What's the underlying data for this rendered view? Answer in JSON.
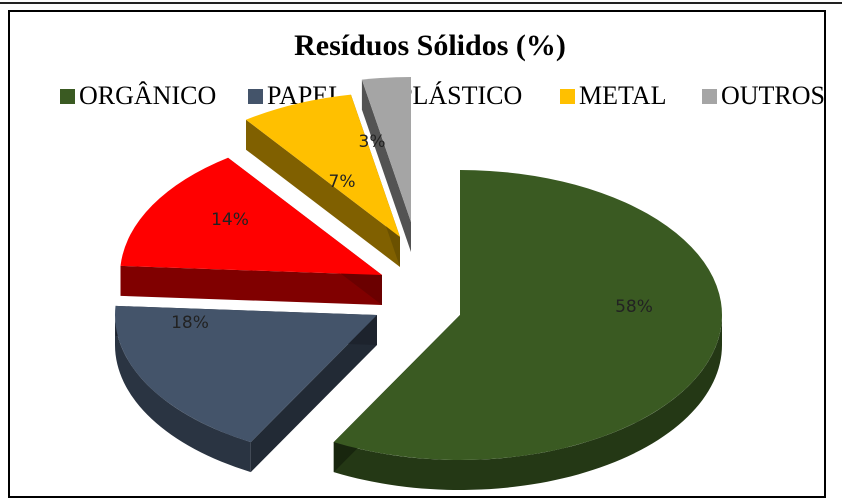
{
  "chart_data": {
    "type": "pie",
    "title": "Resíduos Sólidos (%)",
    "categories": [
      "ORGÂNICO",
      "PAPEL",
      "PLÁSTICO",
      "METAL",
      "OUTROS"
    ],
    "values": [
      58,
      18,
      14,
      7,
      3
    ],
    "data_labels": [
      "58%",
      "18%",
      "14%",
      "7%",
      "3%"
    ],
    "colors": [
      "#3a5a22",
      "#44546a",
      "#ff0000",
      "#ffc000",
      "#a5a5a5"
    ],
    "legend_position": "top",
    "style": "3d-exploded"
  }
}
